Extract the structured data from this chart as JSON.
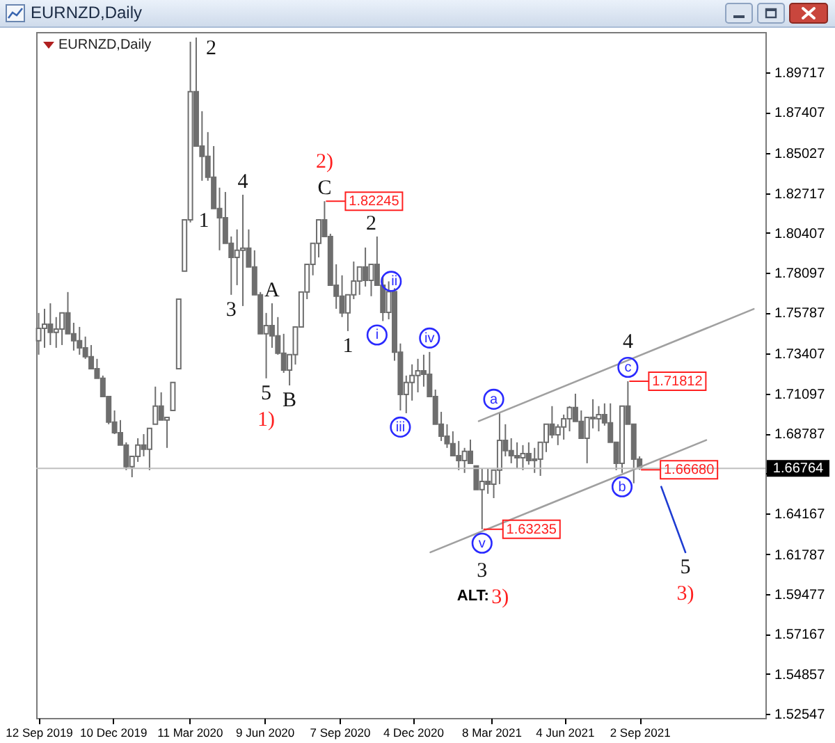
{
  "chart_data": {
    "type": "candlestick",
    "title": "EURNZD,Daily",
    "subtitle": "EURNZD,Daily",
    "x": [
      "2019-09-12",
      "2019-09-19",
      "2019-09-26",
      "2019-10-03",
      "2019-10-10",
      "2019-10-17",
      "2019-10-24",
      "2019-10-31",
      "2019-11-07",
      "2019-11-14",
      "2019-11-21",
      "2019-11-28",
      "2019-12-05",
      "2019-12-12",
      "2019-12-19",
      "2019-12-26",
      "2020-01-02",
      "2020-01-09",
      "2020-01-16",
      "2020-01-23",
      "2020-01-30",
      "2020-02-06",
      "2020-02-13",
      "2020-02-20",
      "2020-02-27",
      "2020-03-05",
      "2020-03-12",
      "2020-03-19",
      "2020-03-26",
      "2020-04-02",
      "2020-04-09",
      "2020-04-16",
      "2020-04-23",
      "2020-04-30",
      "2020-05-07",
      "2020-05-14",
      "2020-05-21",
      "2020-05-28",
      "2020-06-04",
      "2020-06-11",
      "2020-06-18",
      "2020-06-25",
      "2020-07-02",
      "2020-07-09",
      "2020-07-16",
      "2020-07-23",
      "2020-07-30",
      "2020-08-06",
      "2020-08-13",
      "2020-08-20",
      "2020-08-27",
      "2020-09-03",
      "2020-09-10",
      "2020-09-17",
      "2020-09-24",
      "2020-10-01",
      "2020-10-08",
      "2020-10-15",
      "2020-10-22",
      "2020-10-29",
      "2020-11-05",
      "2020-11-12",
      "2020-11-19",
      "2020-11-26",
      "2020-12-03",
      "2020-12-10",
      "2020-12-17",
      "2020-12-24",
      "2020-12-31",
      "2021-01-07",
      "2021-01-14",
      "2021-01-21",
      "2021-01-28",
      "2021-02-04",
      "2021-02-11",
      "2021-02-18",
      "2021-02-25",
      "2021-03-04",
      "2021-03-11",
      "2021-03-18",
      "2021-03-25",
      "2021-04-01",
      "2021-04-08",
      "2021-04-15",
      "2021-04-22",
      "2021-04-29",
      "2021-05-06",
      "2021-05-13",
      "2021-05-20",
      "2021-05-27",
      "2021-06-03",
      "2021-06-10",
      "2021-06-17",
      "2021-06-24",
      "2021-07-01",
      "2021-07-08",
      "2021-07-15",
      "2021-07-22",
      "2021-07-29",
      "2021-08-05",
      "2021-08-12",
      "2021-08-19",
      "2021-08-26",
      "2021-09-02"
    ],
    "series": [
      {
        "color": "#6e6e6e",
        "ohlc": [
          [
            1.7416,
            1.7577,
            1.7335,
            1.7488
          ],
          [
            1.7488,
            1.7601,
            1.7375,
            1.7512
          ],
          [
            1.7512,
            1.7633,
            1.7391,
            1.7464
          ],
          [
            1.7464,
            1.7553,
            1.7375,
            1.7484
          ],
          [
            1.7484,
            1.7577,
            1.7391,
            1.7577
          ],
          [
            1.7577,
            1.7698,
            1.7456,
            1.7456
          ],
          [
            1.7456,
            1.752,
            1.7359,
            1.7416
          ],
          [
            1.7416,
            1.7496,
            1.7335,
            1.7375
          ],
          [
            1.7375,
            1.744,
            1.7311,
            1.7323
          ],
          [
            1.7323,
            1.7391,
            1.7254,
            1.7254
          ],
          [
            1.7254,
            1.7311,
            1.7198,
            1.7198
          ],
          [
            1.7198,
            1.7214,
            1.7093,
            1.7093
          ],
          [
            1.7093,
            1.7093,
            1.6932,
            1.6944
          ],
          [
            1.6944,
            1.7012,
            1.6875,
            1.6883
          ],
          [
            1.6883,
            1.6956,
            1.6811,
            1.6811
          ],
          [
            1.6811,
            1.6827,
            1.6666,
            1.6686
          ],
          [
            1.6686,
            1.6746,
            1.6625,
            1.6746
          ],
          [
            1.6746,
            1.6851,
            1.6714,
            1.6811
          ],
          [
            1.6811,
            1.6875,
            1.6746,
            1.6787
          ],
          [
            1.6787,
            1.6908,
            1.6666,
            1.6908
          ],
          [
            1.6932,
            1.715,
            1.6932,
            1.7037
          ],
          [
            1.7037,
            1.7117,
            1.6956,
            1.6956
          ],
          [
            1.6956,
            1.6972,
            1.6795,
            1.6972
          ],
          [
            1.7012,
            1.7174,
            1.7012,
            1.7174
          ],
          [
            1.7254,
            1.7657,
            1.7254,
            1.7657
          ],
          [
            1.7819,
            1.8117,
            1.7819,
            1.8117
          ],
          [
            1.8117,
            1.9149,
            1.8101,
            1.8859
          ],
          [
            1.8859,
            1.9173,
            1.8544,
            1.8544
          ],
          [
            1.8544,
            1.8746,
            1.8343,
            1.8484
          ],
          [
            1.8484,
            1.8625,
            1.8343,
            1.8363
          ],
          [
            1.8363,
            1.8544,
            1.8182,
            1.8182
          ],
          [
            1.8182,
            1.8303,
            1.794,
            1.8129
          ],
          [
            1.8129,
            1.8278,
            1.798,
            1.798
          ],
          [
            1.798,
            1.802,
            1.7682,
            1.7899
          ],
          [
            1.7899,
            1.8061,
            1.7738,
            1.794
          ],
          [
            1.794,
            1.8262,
            1.7617,
            1.7952
          ],
          [
            1.7952,
            1.8061,
            1.7843,
            1.7843
          ],
          [
            1.7843,
            1.794,
            1.7682,
            1.7682
          ],
          [
            1.7682,
            1.7698,
            1.7456,
            1.7456
          ],
          [
            1.7456,
            1.7577,
            1.7198,
            1.7504
          ],
          [
            1.7504,
            1.7633,
            1.7375,
            1.7444
          ],
          [
            1.7444,
            1.7553,
            1.7335,
            1.7343
          ],
          [
            1.7343,
            1.7456,
            1.723,
            1.7246
          ],
          [
            1.7246,
            1.7335,
            1.7157,
            1.7335
          ],
          [
            1.7335,
            1.7496,
            1.7278,
            1.7496
          ],
          [
            1.7496,
            1.7698,
            1.7496,
            1.7698
          ],
          [
            1.7698,
            1.7859,
            1.7657,
            1.7859
          ],
          [
            1.7859,
            1.798,
            1.7795,
            1.798
          ],
          [
            1.798,
            1.8117,
            1.7899,
            1.8117
          ],
          [
            1.8117,
            1.82245,
            1.802,
            1.802
          ],
          [
            1.802,
            1.8036,
            1.7738,
            1.7738
          ],
          [
            1.7738,
            1.7859,
            1.7601,
            1.7674
          ],
          [
            1.7674,
            1.7795,
            1.7553,
            1.7577
          ],
          [
            1.7577,
            1.7682,
            1.7472,
            1.7682
          ],
          [
            1.7682,
            1.7875,
            1.7657,
            1.7762
          ],
          [
            1.7762,
            1.7843,
            1.7682,
            1.7843
          ],
          [
            1.7843,
            1.7956,
            1.773,
            1.7766
          ],
          [
            1.7766,
            1.7859,
            1.7674,
            1.7859
          ],
          [
            1.7859,
            1.802,
            1.7738,
            1.7738
          ],
          [
            1.7738,
            1.779,
            1.753,
            1.758
          ],
          [
            1.758,
            1.776,
            1.754,
            1.77
          ],
          [
            1.77,
            1.772,
            1.73,
            1.735
          ],
          [
            1.735,
            1.74,
            1.7012,
            1.7105
          ],
          [
            1.7105,
            1.7214,
            1.6996,
            1.7174
          ],
          [
            1.7174,
            1.7279,
            1.7069,
            1.7214
          ],
          [
            1.7214,
            1.7311,
            1.7117,
            1.7242
          ],
          [
            1.7242,
            1.7335,
            1.715,
            1.7222
          ],
          [
            1.7222,
            1.7351,
            1.7093,
            1.7093
          ],
          [
            1.7093,
            1.7133,
            1.6932,
            1.6932
          ],
          [
            1.6932,
            1.7004,
            1.6835,
            1.6863
          ],
          [
            1.6863,
            1.6932,
            1.6795,
            1.6819
          ],
          [
            1.6819,
            1.6891,
            1.6746,
            1.675
          ],
          [
            1.675,
            1.6835,
            1.6666,
            1.6722
          ],
          [
            1.6722,
            1.6795,
            1.665,
            1.6775
          ],
          [
            1.6775,
            1.6843,
            1.6706,
            1.6706
          ],
          [
            1.669,
            1.669,
            1.6553,
            1.6553
          ],
          [
            1.6553,
            1.6674,
            1.63235,
            1.6601
          ],
          [
            1.6601,
            1.6674,
            1.6529,
            1.6585
          ],
          [
            1.6585,
            1.6666,
            1.6504,
            1.6666
          ],
          [
            1.6666,
            1.6996,
            1.6585,
            1.6839
          ],
          [
            1.6839,
            1.6932,
            1.6746,
            1.6779
          ],
          [
            1.6779,
            1.6851,
            1.6706,
            1.675
          ],
          [
            1.675,
            1.6827,
            1.6674,
            1.6738
          ],
          [
            1.6738,
            1.6811,
            1.6666,
            1.6762
          ],
          [
            1.6762,
            1.6827,
            1.6698,
            1.6722
          ],
          [
            1.6722,
            1.6795,
            1.665,
            1.673
          ],
          [
            1.673,
            1.6827,
            1.6633,
            1.6827
          ],
          [
            1.6827,
            1.6932,
            1.6771,
            1.6932
          ],
          [
            1.6932,
            1.7037,
            1.6851,
            1.6871
          ],
          [
            1.6871,
            1.6932,
            1.6811,
            1.6916
          ],
          [
            1.6916,
            1.6988,
            1.6843,
            1.6964
          ],
          [
            1.6964,
            1.7037,
            1.6891,
            1.7029
          ],
          [
            1.7029,
            1.7109,
            1.6948,
            1.6948
          ],
          [
            1.6948,
            1.7012,
            1.6851,
            1.6851
          ],
          [
            1.6851,
            1.6972,
            1.6706,
            1.6972
          ],
          [
            1.6972,
            1.7077,
            1.6908,
            1.6964
          ],
          [
            1.6964,
            1.7037,
            1.6891,
            1.6988
          ],
          [
            1.6988,
            1.7053,
            1.6924,
            1.694
          ],
          [
            1.694,
            1.7053,
            1.6827,
            1.6827
          ],
          [
            1.6827,
            1.6827,
            1.6666,
            1.6706
          ],
          [
            1.6706,
            1.7037,
            1.665,
            1.7037
          ],
          [
            1.7037,
            1.71812,
            1.6932,
            1.6932
          ],
          [
            1.6932,
            1.6932,
            1.659,
            1.673
          ],
          [
            1.673,
            1.6746,
            1.6668,
            1.66764
          ]
        ]
      },
      {
        "type": "line",
        "color": "#a0a0a0",
        "x": [
          "2021-02-21",
          "2022-01-17"
        ],
        "values": [
          1.695,
          1.76
        ]
      },
      {
        "type": "line",
        "color": "#a0a0a0",
        "x": [
          "2020-12-25",
          "2021-11-21"
        ],
        "values": [
          1.619,
          1.684
        ]
      },
      {
        "type": "line",
        "color": "#1e3cd2",
        "x": [
          "2021-09-28",
          "2021-10-27"
        ],
        "values": [
          1.657,
          1.619
        ]
      }
    ],
    "xlim": [
      "2019-09-09",
      "2022-01-31"
    ],
    "xticks": [
      {
        "value": "2019-09-12",
        "label": "12 Sep 2019"
      },
      {
        "value": "2019-12-10",
        "label": "10 Dec 2019"
      },
      {
        "value": "2020-03-11",
        "label": "11 Mar 2020"
      },
      {
        "value": "2020-06-09",
        "label": "9 Jun 2020"
      },
      {
        "value": "2020-09-07",
        "label": "7 Sep 2020"
      },
      {
        "value": "2020-12-04",
        "label": "4 Dec 2020"
      },
      {
        "value": "2021-03-08",
        "label": "8 Mar 2021"
      },
      {
        "value": "2021-06-04",
        "label": "4 Jun 2021"
      },
      {
        "value": "2021-09-02",
        "label": "2 Sep 2021"
      }
    ],
    "ylim": [
      1.523,
      1.9205
    ],
    "yticks": [
      1.89717,
      1.87407,
      1.85027,
      1.82717,
      1.80407,
      1.78097,
      1.75787,
      1.73407,
      1.71097,
      1.68787,
      {
        "value": 1.66477,
        "label": null
      },
      1.64167,
      1.61787,
      1.59477,
      1.57167,
      1.54857,
      1.52547
    ],
    "ref_lines": [
      {
        "axis": "y",
        "value": 1.66764,
        "label": "1.66764",
        "color": "#c0c0c0"
      }
    ],
    "annotations": [
      {
        "text": "2",
        "x": "2020-03-19",
        "y": 1.9173
      },
      {
        "text": "1",
        "x": "2020-03-12",
        "y": 1.8117
      },
      {
        "text": "3",
        "x": "2020-04-30",
        "y": 1.7682
      },
      {
        "text": "4",
        "x": "2020-05-14",
        "y": 1.8262
      },
      {
        "text": "5",
        "x": "2020-06-11",
        "y": 1.7198
      },
      {
        "text": "A",
        "x": "2020-06-18",
        "y": 1.7633
      },
      {
        "text": "B",
        "x": "2020-07-09",
        "y": 1.7157
      },
      {
        "text": "C",
        "x": "2020-08-20",
        "y": 1.82245
      },
      {
        "text": "1",
        "x": "2020-09-17",
        "y": 1.7472
      },
      {
        "text": "2",
        "x": "2020-10-15",
        "y": 1.802
      },
      {
        "text": "3",
        "x": "2021-02-25",
        "y": 1.63235
      },
      {
        "text": "4",
        "x": "2021-08-19",
        "y": 1.71812
      },
      {
        "text": "5",
        "x": "2021-10-27",
        "y": 1.619
      },
      {
        "text": "1)",
        "x": "2020-06-11",
        "y": 1.7198
      },
      {
        "text": "2)",
        "x": "2020-08-20",
        "y": 1.82245
      },
      {
        "text": "3)",
        "x": "2021-02-25",
        "y": 1.63235
      },
      "ALT:",
      {
        "text": "3)",
        "x": "2021-10-27",
        "y": 1.619
      },
      {
        "text": "i",
        "x": "2020-10-22",
        "y": 1.753
      },
      {
        "text": "ii",
        "x": "2020-10-29",
        "y": 1.776
      },
      {
        "text": "iii",
        "x": "2020-11-19",
        "y": 1.6996
      },
      {
        "text": "iv",
        "x": "2020-12-24",
        "y": 1.7351
      },
      {
        "text": "v",
        "x": "2021-02-25",
        "y": 1.63235
      },
      {
        "text": "a",
        "x": "2021-03-11",
        "y": 1.6996
      },
      {
        "text": "b",
        "x": "2021-08-12",
        "y": 1.665
      },
      {
        "text": "c",
        "x": "2021-08-19",
        "y": 1.71812
      },
      {
        "text": "1.82245",
        "x": "2020-08-20",
        "y": 1.82245
      },
      {
        "text": "1.63235",
        "x": "2021-02-25",
        "y": 1.63235
      },
      {
        "text": "1.71812",
        "x": "2021-08-19",
        "y": 1.71812
      },
      {
        "text": "1.66680",
        "x": "2021-09-02",
        "y": 1.6668
      }
    ]
  }
}
